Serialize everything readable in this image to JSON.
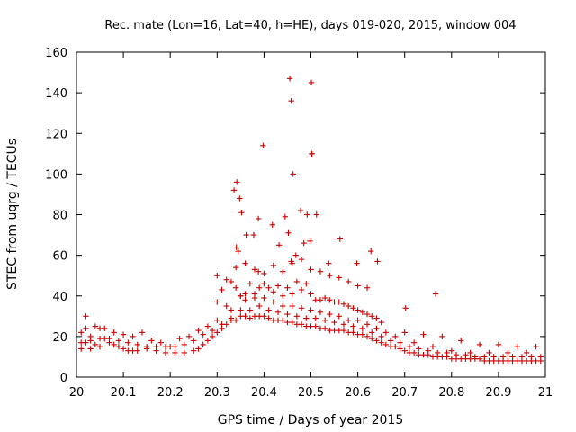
{
  "chart_data": {
    "type": "scatter",
    "title": "Rec. mate (Lon=16, Lat=40, h=HE), days 019-020, 2015, window 004",
    "xlabel": "GPS time / Days of year 2015",
    "ylabel": "STEC from uqrg / TECUs",
    "xlim": [
      20.0,
      21.0
    ],
    "ylim": [
      0,
      160
    ],
    "xticks": [
      20,
      20.1,
      20.2,
      20.3,
      20.4,
      20.5,
      20.6,
      20.7,
      20.8,
      20.9,
      21
    ],
    "xtick_labels": [
      "20",
      "20.1",
      "20.2",
      "20.3",
      "20.4",
      "20.5",
      "20.6",
      "20.7",
      "20.8",
      "20.9",
      "21"
    ],
    "yticks": [
      0,
      20,
      40,
      60,
      80,
      100,
      120,
      140,
      160
    ],
    "ytick_labels": [
      "0",
      "20",
      "40",
      "60",
      "80",
      "100",
      "120",
      "140",
      "160"
    ],
    "marker": "+",
    "color": "#cc0000",
    "series": [
      {
        "name": "STEC",
        "x": [
          20.01,
          20.01,
          20.02,
          20.03,
          20.03,
          20.04,
          20.05,
          20.05,
          20.06,
          20.07,
          20.08,
          20.09,
          20.1,
          20.11,
          20.12,
          20.13,
          20.15,
          20.17,
          20.19,
          20.21,
          20.23,
          20.25,
          20.26,
          20.27,
          20.28,
          20.29,
          20.3,
          20.31,
          20.32,
          20.33,
          20.34,
          20.35,
          20.36,
          20.37,
          20.38,
          20.39,
          20.4,
          20.41,
          20.42,
          20.43,
          20.44,
          20.45,
          20.46,
          20.47,
          20.48,
          20.49,
          20.5,
          20.51,
          20.52,
          20.53,
          20.54,
          20.55,
          20.56,
          20.57,
          20.58,
          20.59,
          20.6,
          20.61,
          20.62,
          20.63,
          20.64,
          20.65,
          20.66,
          20.67,
          20.68,
          20.69,
          20.7,
          20.71,
          20.72,
          20.73,
          20.74,
          20.75,
          20.76,
          20.77,
          20.78,
          20.79,
          20.8,
          20.81,
          20.82,
          20.83,
          20.84,
          20.85,
          20.86,
          20.87,
          20.88,
          20.89,
          20.9,
          20.91,
          20.92,
          20.93,
          20.94,
          20.95,
          20.96,
          20.97,
          20.98,
          20.99,
          20.01,
          20.03,
          20.05,
          20.07,
          20.09,
          20.11,
          20.13,
          20.15,
          20.17,
          20.19,
          20.21,
          20.23,
          20.25,
          20.27,
          20.29,
          20.31,
          20.33,
          20.35,
          20.37,
          20.39,
          20.41,
          20.43,
          20.45,
          20.47,
          20.49,
          20.51,
          20.53,
          20.55,
          20.57,
          20.59,
          20.61,
          20.63,
          20.65,
          20.67,
          20.69,
          20.71,
          20.73,
          20.75,
          20.77,
          20.79,
          20.81,
          20.83,
          20.85,
          20.87,
          20.89,
          20.91,
          20.93,
          20.95,
          20.97,
          20.99,
          20.02,
          20.06,
          20.1,
          20.14,
          20.18,
          20.22,
          20.26,
          20.3,
          20.33,
          20.35,
          20.36,
          20.38,
          20.4,
          20.42,
          20.44,
          20.46,
          20.48,
          20.5,
          20.52,
          20.54,
          20.56,
          20.58,
          20.6,
          20.62,
          20.64,
          20.66,
          20.68,
          20.72,
          20.76,
          20.8,
          20.84,
          20.88,
          20.92,
          20.96,
          20.02,
          20.04,
          20.08,
          20.12,
          20.16,
          20.2,
          20.24,
          20.28,
          20.3,
          20.31,
          20.32,
          20.33,
          20.34,
          20.35,
          20.36,
          20.37,
          20.38,
          20.39,
          20.4,
          20.41,
          20.42,
          20.43,
          20.44,
          20.45,
          20.46,
          20.47,
          20.48,
          20.49,
          20.5,
          20.51,
          20.52,
          20.53,
          20.54,
          20.55,
          20.56,
          20.57,
          20.58,
          20.59,
          20.6,
          20.61,
          20.62,
          20.63,
          20.64,
          20.65,
          20.7,
          20.74,
          20.78,
          20.82,
          20.86,
          20.9,
          20.94,
          20.98,
          20.336,
          20.342,
          20.348,
          20.352,
          20.362,
          20.378,
          20.388,
          20.398,
          20.418,
          20.432,
          20.445,
          20.452,
          20.458,
          20.462,
          20.468,
          20.478,
          20.485,
          20.492,
          20.498,
          20.502,
          20.512,
          20.538,
          20.562,
          20.598,
          20.628,
          20.642,
          20.702,
          20.766,
          20.3,
          20.32,
          20.34,
          20.36,
          20.38,
          20.4,
          20.42,
          20.44,
          20.46,
          20.48,
          20.5,
          20.52,
          20.54,
          20.56,
          20.58,
          20.6,
          20.62,
          20.455,
          20.458,
          20.501,
          20.502,
          20.388,
          20.341,
          20.345
        ],
        "y": [
          14,
          22,
          17,
          14,
          20,
          16,
          15,
          24,
          19,
          17,
          16,
          15,
          14,
          13,
          13,
          13,
          14,
          13,
          12,
          12,
          12,
          13,
          14,
          16,
          18,
          20,
          22,
          24,
          26,
          28,
          28,
          30,
          30,
          29,
          30,
          30,
          30,
          29,
          28,
          28,
          28,
          27,
          27,
          26,
          26,
          25,
          25,
          25,
          24,
          24,
          23,
          23,
          23,
          23,
          22,
          22,
          21,
          21,
          20,
          19,
          18,
          17,
          16,
          15,
          15,
          14,
          13,
          12,
          12,
          11,
          11,
          11,
          10,
          10,
          10,
          10,
          9,
          9,
          9,
          9,
          9,
          9,
          9,
          8,
          8,
          8,
          8,
          8,
          8,
          8,
          8,
          8,
          8,
          8,
          8,
          8,
          17,
          18,
          19,
          19,
          18,
          17,
          16,
          15,
          15,
          15,
          15,
          16,
          18,
          21,
          23,
          26,
          29,
          33,
          33,
          35,
          33,
          32,
          31,
          30,
          29,
          29,
          28,
          27,
          26,
          25,
          24,
          22,
          20,
          18,
          17,
          15,
          14,
          13,
          12,
          12,
          11,
          11,
          10,
          10,
          10,
          10,
          10,
          10,
          10,
          10,
          24,
          24,
          21,
          22,
          17,
          19,
          23,
          28,
          33,
          40,
          38,
          41,
          39,
          37,
          35,
          35,
          34,
          33,
          32,
          31,
          30,
          28,
          28,
          26,
          24,
          22,
          20,
          17,
          15,
          13,
          12,
          12,
          12,
          12,
          30,
          25,
          22,
          20,
          18,
          15,
          20,
          25,
          37,
          43,
          35,
          47,
          44,
          40,
          41,
          46,
          39,
          44,
          46,
          44,
          42,
          45,
          40,
          44,
          41,
          47,
          43,
          46,
          41,
          38,
          38,
          39,
          38,
          37,
          37,
          36,
          35,
          34,
          33,
          32,
          31,
          30,
          29,
          27,
          22,
          21,
          20,
          18,
          16,
          16,
          15,
          15,
          92,
          96,
          88,
          81,
          70,
          70,
          78,
          114,
          75,
          65,
          79,
          71,
          57,
          100,
          60,
          82,
          66,
          80,
          67,
          110,
          80,
          56,
          68,
          56,
          62,
          57,
          34,
          41,
          50,
          48,
          54,
          56,
          53,
          51,
          55,
          52,
          56,
          58,
          53,
          52,
          50,
          49,
          47,
          45,
          44,
          147,
          136,
          145,
          110,
          52,
          64,
          62
        ]
      }
    ]
  }
}
